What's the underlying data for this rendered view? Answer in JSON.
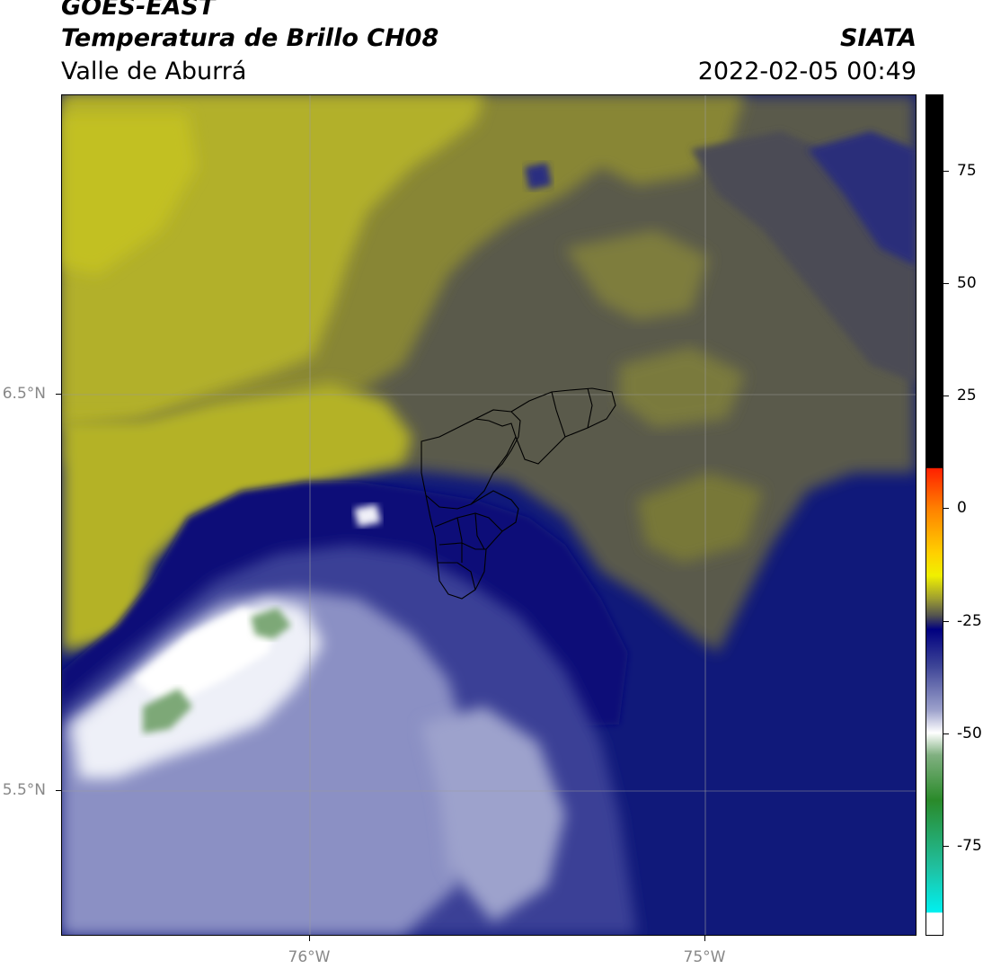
{
  "header": {
    "satellite": "GOES-EAST",
    "product": "Temperatura de Brillo CH08",
    "region": "Valle de Aburrá",
    "organization": "SIATA",
    "datetime": "2022-02-05 00:49"
  },
  "map": {
    "lat_ticks": [
      {
        "value": 6.5,
        "label": "6.5°N"
      },
      {
        "value": 5.5,
        "label": "5.5°N"
      }
    ],
    "lon_ticks": [
      {
        "value": -76,
        "label": "76°W"
      },
      {
        "value": -75,
        "label": "75°W"
      }
    ],
    "lat_range": [
      5.13,
      7.25
    ],
    "lon_range": [
      -76.625,
      -74.46
    ],
    "legend_colors": {
      "warm_olive": "#b8b628",
      "mid_olive": "#8a8838",
      "gray_olive": "#5a5a48",
      "deep_blue": "#0a1080",
      "mid_blue": "#3c4396",
      "light_blue": "#9da2cc",
      "white": "#f2f2f8",
      "green": "#7da877"
    }
  },
  "colorbar": {
    "range": [
      -95,
      92
    ],
    "ticks": [
      {
        "value": 75,
        "label": "75"
      },
      {
        "value": 50,
        "label": "50"
      },
      {
        "value": 25,
        "label": "25"
      },
      {
        "value": 0,
        "label": "0"
      },
      {
        "value": -25,
        "label": "-25"
      },
      {
        "value": -50,
        "label": "-50"
      },
      {
        "value": -75,
        "label": "-75"
      }
    ],
    "stops": [
      {
        "value": 92,
        "color": "#000000"
      },
      {
        "value": 9,
        "color": "#000000"
      },
      {
        "value": 8.9,
        "color": "#ff2000"
      },
      {
        "value": 0,
        "color": "#ff8000"
      },
      {
        "value": -10,
        "color": "#ffd000"
      },
      {
        "value": -15,
        "color": "#f0f000"
      },
      {
        "value": -20,
        "color": "#a0a030"
      },
      {
        "value": -24,
        "color": "#505050"
      },
      {
        "value": -27,
        "color": "#000080"
      },
      {
        "value": -35,
        "color": "#3c4396"
      },
      {
        "value": -45,
        "color": "#9da2cc"
      },
      {
        "value": -50,
        "color": "#ffffff"
      },
      {
        "value": -55,
        "color": "#80b080"
      },
      {
        "value": -65,
        "color": "#2a8a2a"
      },
      {
        "value": -80,
        "color": "#20c0a0"
      },
      {
        "value": -90,
        "color": "#00f0f0"
      },
      {
        "value": -90.1,
        "color": "#ffffff"
      },
      {
        "value": -95,
        "color": "#ffffff"
      }
    ]
  }
}
